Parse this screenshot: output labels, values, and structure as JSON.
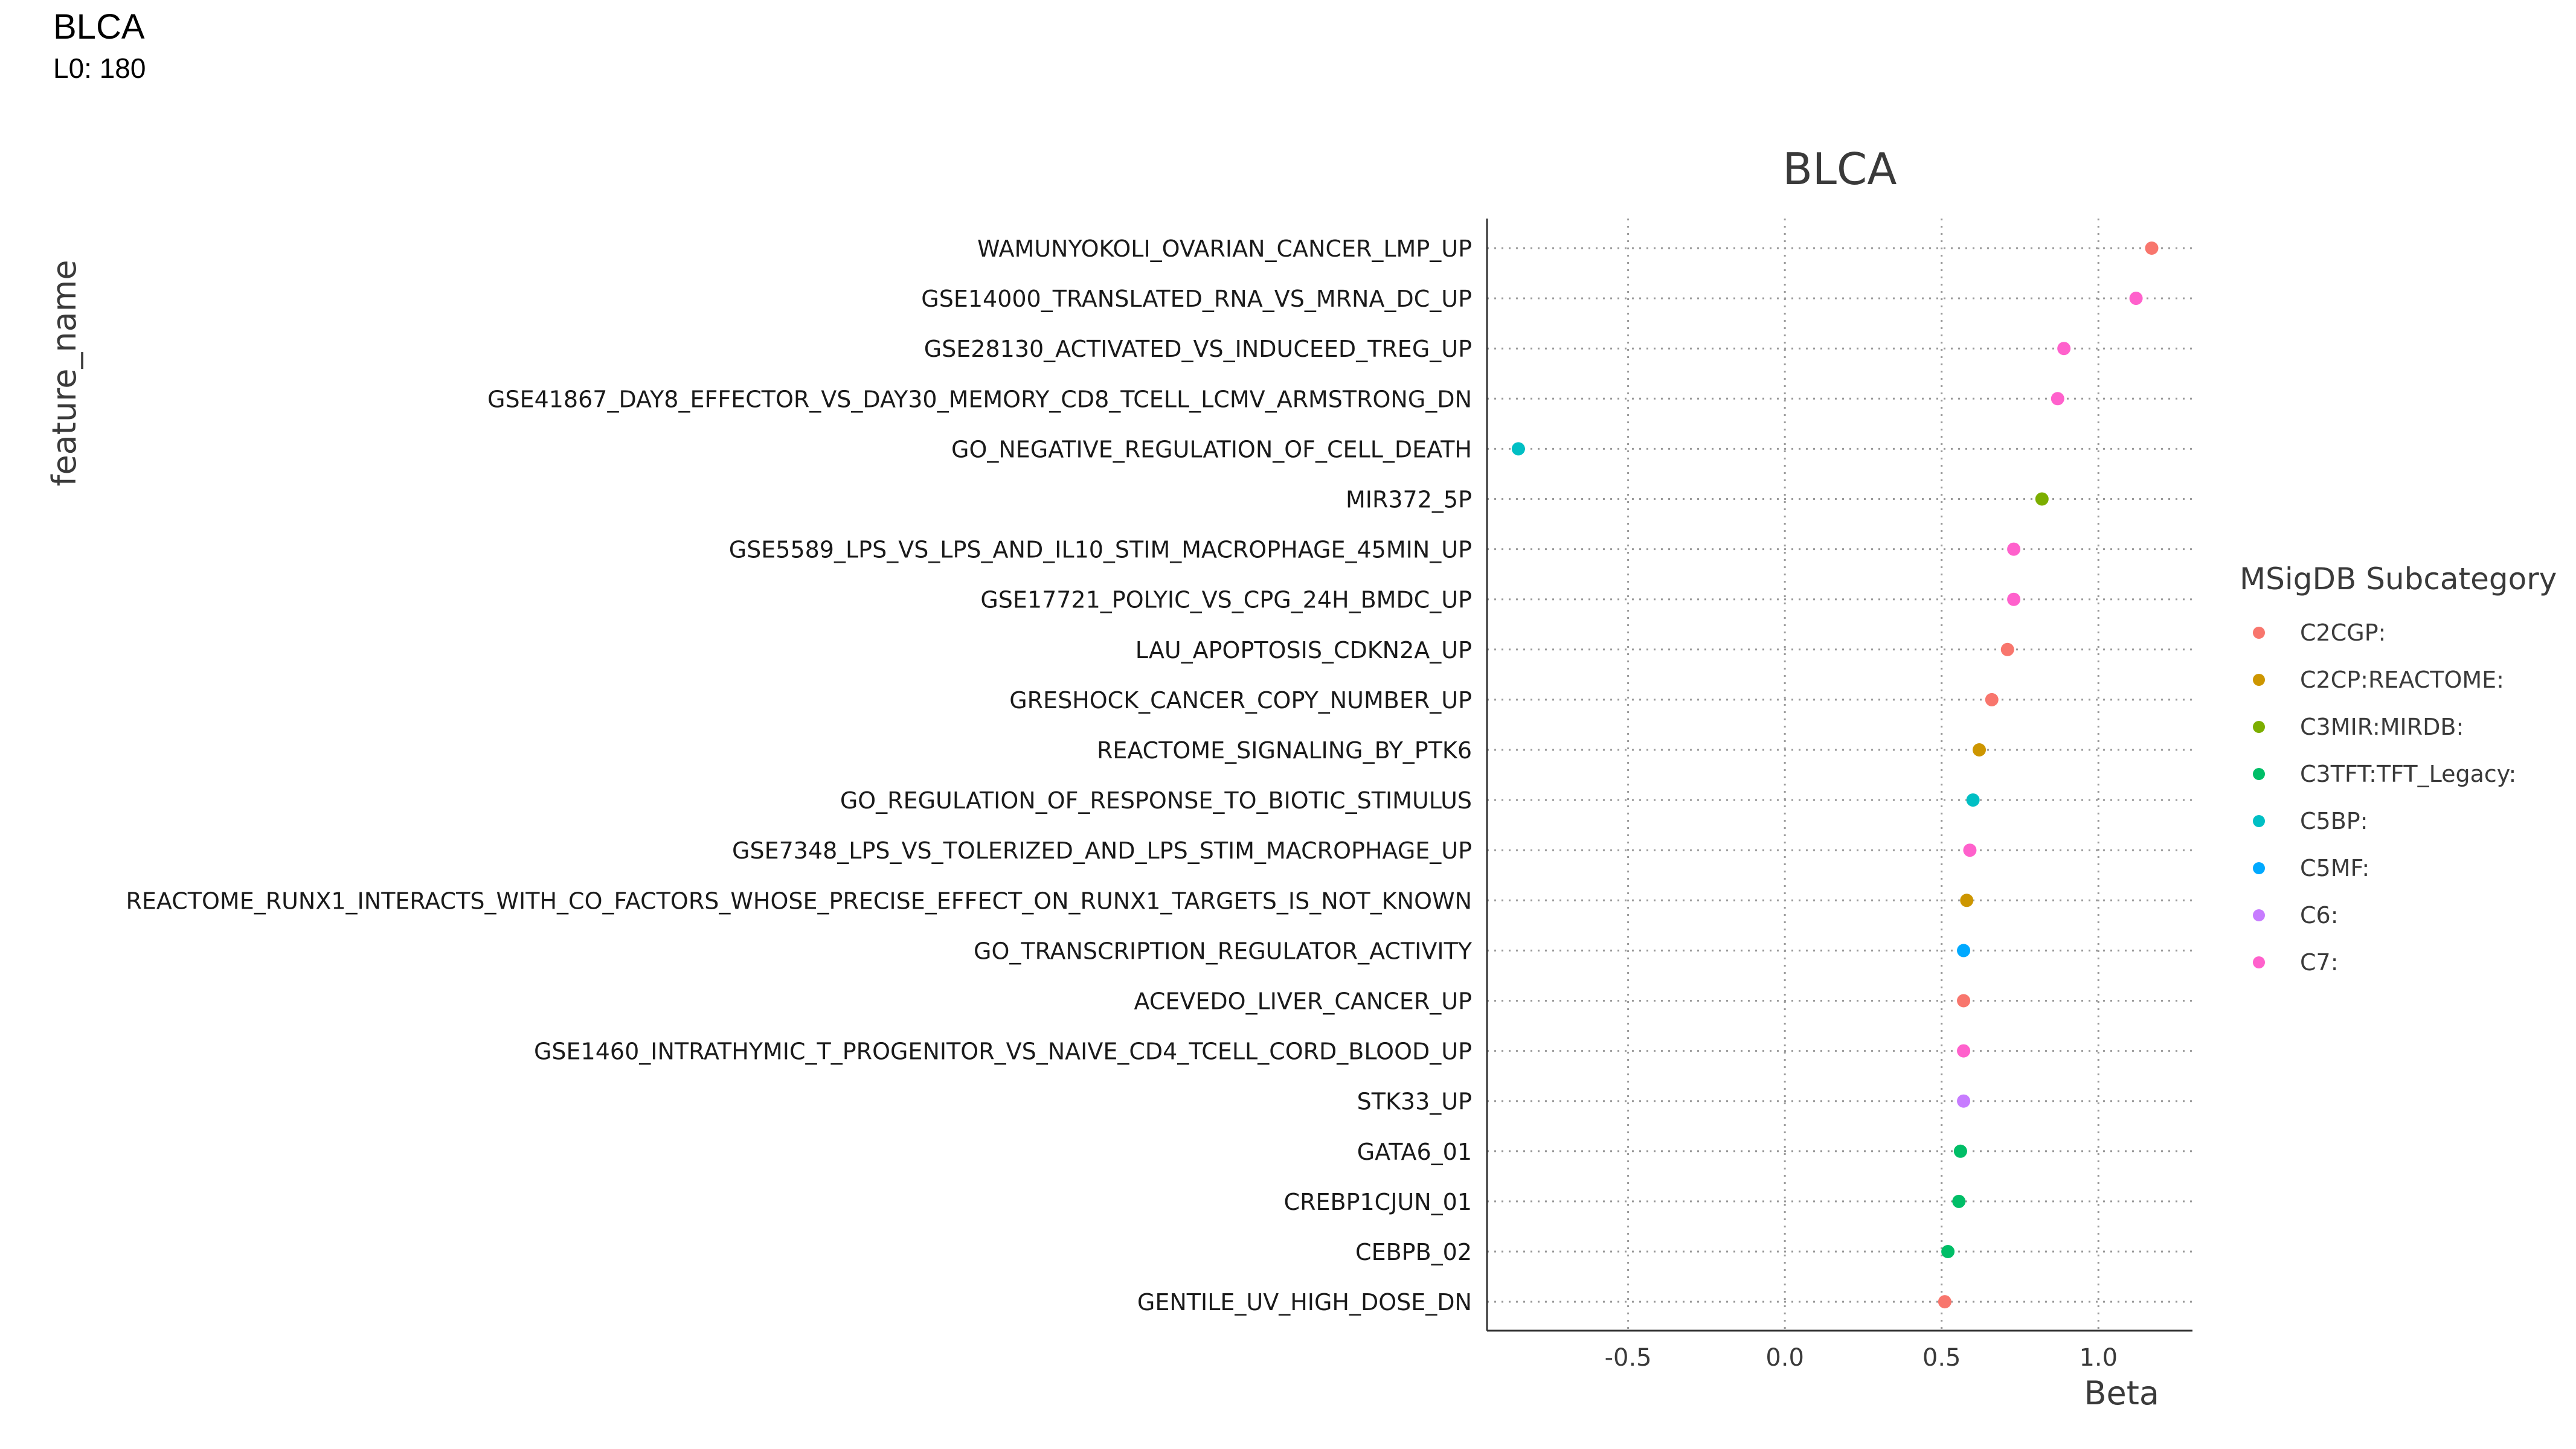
{
  "header": {
    "title": "BLCA",
    "subtitle": "L0: 180"
  },
  "chart_data": {
    "type": "scatter",
    "title": "BLCA",
    "xlabel": "Beta",
    "ylabel": "feature_name",
    "xlim": [
      -0.95,
      1.3
    ],
    "xticks": [
      -0.5,
      0.0,
      0.5,
      1.0
    ],
    "xtick_labels": [
      "-0.5",
      "0.0",
      "0.5",
      "1.0"
    ],
    "grid": "dotted",
    "legend": {
      "title": "MSigDB Subcategory",
      "placement": "right",
      "entries": [
        {
          "label": "C2CGP:",
          "color": "#F8766D"
        },
        {
          "label": "C2CP:REACTOME:",
          "color": "#CD9600"
        },
        {
          "label": "C3MIR:MIRDB:",
          "color": "#7CAE00"
        },
        {
          "label": "C3TFT:TFT_Legacy:",
          "color": "#00BE67"
        },
        {
          "label": "C5BP:",
          "color": "#00BFC4"
        },
        {
          "label": "C5MF:",
          "color": "#00A9FF"
        },
        {
          "label": "C6:",
          "color": "#C77CFF"
        },
        {
          "label": "C7:",
          "color": "#FF61CC"
        }
      ]
    },
    "points": [
      {
        "feature": "WAMUNYOKOLI_OVARIAN_CANCER_LMP_UP",
        "beta": 1.17,
        "category": "C2CGP:"
      },
      {
        "feature": "GSE14000_TRANSLATED_RNA_VS_MRNA_DC_UP",
        "beta": 1.12,
        "category": "C7:"
      },
      {
        "feature": "GSE28130_ACTIVATED_VS_INDUCEED_TREG_UP",
        "beta": 0.89,
        "category": "C7:"
      },
      {
        "feature": "GSE41867_DAY8_EFFECTOR_VS_DAY30_MEMORY_CD8_TCELL_LCMV_ARMSTRONG_DN",
        "beta": 0.87,
        "category": "C7:"
      },
      {
        "feature": "GO_NEGATIVE_REGULATION_OF_CELL_DEATH",
        "beta": -0.85,
        "category": "C5BP:"
      },
      {
        "feature": "MIR372_5P",
        "beta": 0.82,
        "category": "C3MIR:MIRDB:"
      },
      {
        "feature": "GSE5589_LPS_VS_LPS_AND_IL10_STIM_MACROPHAGE_45MIN_UP",
        "beta": 0.73,
        "category": "C7:"
      },
      {
        "feature": "GSE17721_POLYIC_VS_CPG_24H_BMDC_UP",
        "beta": 0.73,
        "category": "C7:"
      },
      {
        "feature": "LAU_APOPTOSIS_CDKN2A_UP",
        "beta": 0.71,
        "category": "C2CGP:"
      },
      {
        "feature": "GRESHOCK_CANCER_COPY_NUMBER_UP",
        "beta": 0.66,
        "category": "C2CGP:"
      },
      {
        "feature": "REACTOME_SIGNALING_BY_PTK6",
        "beta": 0.62,
        "category": "C2CP:REACTOME:"
      },
      {
        "feature": "GO_REGULATION_OF_RESPONSE_TO_BIOTIC_STIMULUS",
        "beta": 0.6,
        "category": "C5BP:"
      },
      {
        "feature": "GSE7348_LPS_VS_TOLERIZED_AND_LPS_STIM_MACROPHAGE_UP",
        "beta": 0.59,
        "category": "C7:"
      },
      {
        "feature": "REACTOME_RUNX1_INTERACTS_WITH_CO_FACTORS_WHOSE_PRECISE_EFFECT_ON_RUNX1_TARGETS_IS_NOT_KNOWN",
        "beta": 0.58,
        "category": "C2CP:REACTOME:"
      },
      {
        "feature": "GO_TRANSCRIPTION_REGULATOR_ACTIVITY",
        "beta": 0.57,
        "category": "C5MF:"
      },
      {
        "feature": "ACEVEDO_LIVER_CANCER_UP",
        "beta": 0.57,
        "category": "C2CGP:"
      },
      {
        "feature": "GSE1460_INTRATHYMIC_T_PROGENITOR_VS_NAIVE_CD4_TCELL_CORD_BLOOD_UP",
        "beta": 0.57,
        "category": "C7:"
      },
      {
        "feature": "STK33_UP",
        "beta": 0.57,
        "category": "C6:"
      },
      {
        "feature": "GATA6_01",
        "beta": 0.56,
        "category": "C3TFT:TFT_Legacy:"
      },
      {
        "feature": "CREBP1CJUN_01",
        "beta": 0.555,
        "category": "C3TFT:TFT_Legacy:"
      },
      {
        "feature": "CEBPB_02",
        "beta": 0.52,
        "category": "C3TFT:TFT_Legacy:"
      },
      {
        "feature": "GENTILE_UV_HIGH_DOSE_DN",
        "beta": 0.51,
        "category": "C2CGP:"
      }
    ]
  }
}
